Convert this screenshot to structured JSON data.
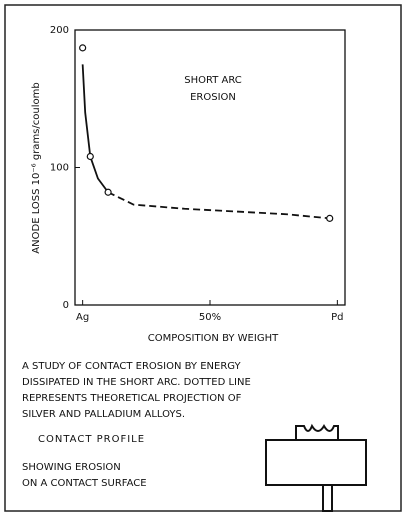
{
  "chart_data": {
    "type": "line",
    "annotation": [
      "SHORT      ARC",
      "EROSION"
    ],
    "ylabel": "ANODE LOSS 10⁻⁶ grams/coulomb",
    "xlabel": "COMPOSITION BY WEIGHT",
    "xlim": [
      -3,
      103
    ],
    "ylim": [
      0,
      200
    ],
    "xticks": [
      {
        "value": 0,
        "label": "Ag"
      },
      {
        "value": 50,
        "label": "50%"
      },
      {
        "value": 100,
        "label": "Pd"
      }
    ],
    "yticks": [
      0,
      100,
      200
    ],
    "series": [
      {
        "color": "#111",
        "style": "solid",
        "x": [
          0,
          1,
          3,
          6,
          10
        ],
        "values": [
          175,
          140,
          108,
          92,
          82
        ]
      },
      {
        "color": "#111",
        "style": "dashed",
        "x": [
          10,
          20,
          40,
          60,
          80,
          97
        ],
        "values": [
          82,
          73,
          70,
          68,
          66,
          63
        ]
      }
    ],
    "markers": {
      "x": [
        0,
        3,
        10,
        97
      ],
      "values": [
        187,
        108,
        82,
        63
      ]
    }
  },
  "caption": [
    "A STUDY OF CONTACT EROSION BY ENERGY",
    "DISSIPATED IN THE SHORT ARC.  DOTTED LINE",
    "REPRESENTS THEORETICAL PROJECTION OF",
    "SILVER AND PALLADIUM ALLOYS."
  ],
  "profile": {
    "title": "CONTACT PROFILE",
    "lines": [
      "SHOWING EROSION",
      "ON A CONTACT SURFACE"
    ]
  }
}
